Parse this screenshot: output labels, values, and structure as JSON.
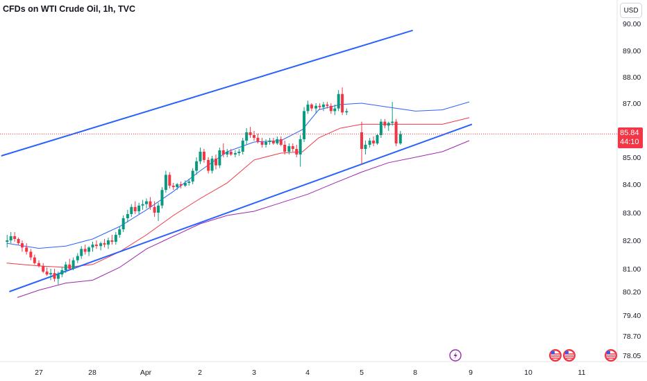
{
  "header": {
    "title": "CFDs on WTI Crude Oil, 1h, TVC"
  },
  "currency_button": {
    "label": "USD"
  },
  "price_tag": {
    "price": "85.84",
    "countdown": "44:10"
  },
  "colors": {
    "up": "#089981",
    "down": "#f23645",
    "channel": "#2962ff",
    "band_upper": "#2962ff",
    "band_mid": "#f23645",
    "band_lower": "#9c27b0",
    "last_price": "#f23645"
  },
  "chart_data": {
    "type": "candlestick",
    "y_ticks": [
      "90.00",
      "89.00",
      "88.00",
      "87.00",
      "86.00",
      "85.00",
      "84.00",
      "83.00",
      "82.00",
      "81.00",
      "80.20",
      "79.40",
      "78.70",
      "78.05"
    ],
    "x_ticks": [
      "27",
      "28",
      "Apr",
      "2",
      "3",
      "4",
      "5",
      "8",
      "9",
      "10",
      "11"
    ],
    "last_price": 85.84,
    "series": [
      {
        "name": "",
        "kind": "channel-upper",
        "points": [
          [
            -0.7,
            85.05
          ],
          [
            6.95,
            89.75
          ]
        ]
      },
      {
        "name": "",
        "kind": "channel-lower",
        "points": [
          [
            -0.55,
            80.2
          ],
          [
            8.05,
            86.2
          ]
        ]
      },
      {
        "name": "",
        "kind": "upper-band",
        "points": [
          [
            -0.6,
            81.9
          ],
          [
            0.0,
            81.72
          ],
          [
            0.5,
            81.8
          ],
          [
            1.0,
            82.05
          ],
          [
            1.5,
            82.5
          ],
          [
            2.0,
            83.1
          ],
          [
            2.5,
            83.75
          ],
          [
            3.0,
            84.5
          ],
          [
            3.5,
            85.2
          ],
          [
            4.0,
            85.55
          ],
          [
            4.5,
            85.6
          ],
          [
            4.9,
            86.0
          ],
          [
            5.2,
            86.75
          ],
          [
            5.6,
            86.95
          ],
          [
            6.0,
            87.0
          ],
          [
            6.5,
            86.85
          ],
          [
            7.0,
            86.7
          ],
          [
            7.5,
            86.75
          ],
          [
            8.0,
            87.05
          ]
        ]
      },
      {
        "name": "",
        "kind": "middle-band",
        "points": [
          [
            -0.6,
            81.2
          ],
          [
            0.0,
            81.1
          ],
          [
            0.5,
            81.05
          ],
          [
            1.0,
            81.15
          ],
          [
            1.5,
            81.6
          ],
          [
            2.0,
            82.2
          ],
          [
            2.5,
            82.9
          ],
          [
            3.0,
            83.5
          ],
          [
            3.5,
            84.05
          ],
          [
            4.0,
            84.9
          ],
          [
            4.5,
            85.15
          ],
          [
            4.9,
            85.2
          ],
          [
            5.2,
            85.7
          ],
          [
            5.6,
            86.05
          ],
          [
            6.0,
            86.2
          ],
          [
            6.5,
            86.2
          ],
          [
            7.0,
            86.2
          ],
          [
            7.5,
            86.2
          ],
          [
            8.0,
            86.45
          ]
        ]
      },
      {
        "name": "",
        "kind": "lower-band",
        "points": [
          [
            -0.4,
            80.0
          ],
          [
            0.0,
            80.25
          ],
          [
            0.5,
            80.5
          ],
          [
            1.0,
            80.6
          ],
          [
            1.5,
            81.05
          ],
          [
            2.0,
            81.7
          ],
          [
            2.5,
            82.15
          ],
          [
            3.0,
            82.6
          ],
          [
            3.5,
            82.9
          ],
          [
            4.0,
            83.05
          ],
          [
            4.5,
            83.35
          ],
          [
            5.0,
            83.65
          ],
          [
            5.5,
            84.05
          ],
          [
            6.0,
            84.45
          ],
          [
            6.5,
            84.8
          ],
          [
            7.0,
            85.0
          ],
          [
            7.5,
            85.2
          ],
          [
            8.0,
            85.6
          ]
        ]
      }
    ],
    "candles": [
      [
        -0.59,
        81.95,
        82.2,
        81.75,
        82.0
      ],
      [
        -0.52,
        82.0,
        82.3,
        81.9,
        82.15
      ],
      [
        -0.45,
        82.15,
        82.3,
        81.95,
        82.05
      ],
      [
        -0.38,
        82.05,
        82.1,
        81.85,
        81.9
      ],
      [
        -0.31,
        81.9,
        82.0,
        81.6,
        81.75
      ],
      [
        -0.23,
        81.75,
        81.9,
        81.5,
        81.6
      ],
      [
        -0.15,
        81.6,
        81.7,
        81.3,
        81.4
      ],
      [
        -0.08,
        81.4,
        81.5,
        81.15,
        81.2
      ],
      [
        0.0,
        81.2,
        81.3,
        81.05,
        81.1
      ],
      [
        0.08,
        81.1,
        81.2,
        80.85,
        80.9
      ],
      [
        0.15,
        80.9,
        81.05,
        80.75,
        80.8
      ],
      [
        0.22,
        80.8,
        81.0,
        80.6,
        80.85
      ],
      [
        0.29,
        80.85,
        81.0,
        80.55,
        80.65
      ],
      [
        0.36,
        80.65,
        80.9,
        80.45,
        80.8
      ],
      [
        0.43,
        80.8,
        81.05,
        80.7,
        80.95
      ],
      [
        0.5,
        80.95,
        81.25,
        80.85,
        81.15
      ],
      [
        0.57,
        81.15,
        81.35,
        80.95,
        81.0
      ],
      [
        0.64,
        81.0,
        81.4,
        80.95,
        81.3
      ],
      [
        0.72,
        81.3,
        81.55,
        81.2,
        81.45
      ],
      [
        0.79,
        81.45,
        81.8,
        81.35,
        81.7
      ],
      [
        0.86,
        81.7,
        81.85,
        81.5,
        81.6
      ],
      [
        0.93,
        81.6,
        81.8,
        81.45,
        81.75
      ],
      [
        1.0,
        81.75,
        81.95,
        81.6,
        81.85
      ],
      [
        1.07,
        81.85,
        82.0,
        81.7,
        81.8
      ],
      [
        1.15,
        81.8,
        81.95,
        81.65,
        81.9
      ],
      [
        1.22,
        81.9,
        82.05,
        81.75,
        81.85
      ],
      [
        1.29,
        81.85,
        82.1,
        81.7,
        82.0
      ],
      [
        1.36,
        82.0,
        82.2,
        81.85,
        81.95
      ],
      [
        1.43,
        81.95,
        82.3,
        81.85,
        82.2
      ],
      [
        1.5,
        82.2,
        82.5,
        82.1,
        82.4
      ],
      [
        1.57,
        82.4,
        82.9,
        82.3,
        82.8
      ],
      [
        1.65,
        82.8,
        83.1,
        82.65,
        82.95
      ],
      [
        1.72,
        82.95,
        83.3,
        82.85,
        83.2
      ],
      [
        1.79,
        83.2,
        83.4,
        82.95,
        83.05
      ],
      [
        1.86,
        83.05,
        83.35,
        82.95,
        83.25
      ],
      [
        1.93,
        83.25,
        83.45,
        83.1,
        83.3
      ],
      [
        2.0,
        83.3,
        83.5,
        83.15,
        83.4
      ],
      [
        2.07,
        83.4,
        83.55,
        83.1,
        83.2
      ],
      [
        2.15,
        83.2,
        83.4,
        82.85,
        83.0
      ],
      [
        2.22,
        83.0,
        83.35,
        82.7,
        83.25
      ],
      [
        2.29,
        83.25,
        83.9,
        83.15,
        83.8
      ],
      [
        2.36,
        83.8,
        84.5,
        83.7,
        84.35
      ],
      [
        2.43,
        84.35,
        84.45,
        83.85,
        83.95
      ],
      [
        2.5,
        83.95,
        84.05,
        83.8,
        83.9
      ],
      [
        2.57,
        83.9,
        84.05,
        83.8,
        84.0
      ],
      [
        2.64,
        84.0,
        84.1,
        83.85,
        83.95
      ],
      [
        2.72,
        83.95,
        84.15,
        83.9,
        84.05
      ],
      [
        2.79,
        84.05,
        84.2,
        83.95,
        84.1
      ],
      [
        2.86,
        84.1,
        84.6,
        84.0,
        84.5
      ],
      [
        2.93,
        84.5,
        85.0,
        84.35,
        84.85
      ],
      [
        3.0,
        84.85,
        85.35,
        84.75,
        85.2
      ],
      [
        3.07,
        85.2,
        85.3,
        84.8,
        84.9
      ],
      [
        3.15,
        84.9,
        85.0,
        84.4,
        84.5
      ],
      [
        3.22,
        84.5,
        85.05,
        84.4,
        84.95
      ],
      [
        3.29,
        84.95,
        85.1,
        84.55,
        84.7
      ],
      [
        3.36,
        84.7,
        85.35,
        84.6,
        85.25
      ],
      [
        3.43,
        85.25,
        85.5,
        85.0,
        85.1
      ],
      [
        3.5,
        85.1,
        85.3,
        85.0,
        85.2
      ],
      [
        3.57,
        85.2,
        85.3,
        85.05,
        85.1
      ],
      [
        3.65,
        85.1,
        85.25,
        85.0,
        85.15
      ],
      [
        3.72,
        85.15,
        85.3,
        85.05,
        85.2
      ],
      [
        3.79,
        85.2,
        85.7,
        85.1,
        85.6
      ],
      [
        3.86,
        85.6,
        86.05,
        85.45,
        85.9
      ],
      [
        3.93,
        85.9,
        86.1,
        85.7,
        85.8
      ],
      [
        4.0,
        85.8,
        85.95,
        85.6,
        85.7
      ],
      [
        4.07,
        85.7,
        85.85,
        85.5,
        85.55
      ],
      [
        4.15,
        85.55,
        85.7,
        85.35,
        85.45
      ],
      [
        4.22,
        85.45,
        85.65,
        85.35,
        85.55
      ],
      [
        4.29,
        85.55,
        85.7,
        85.45,
        85.6
      ],
      [
        4.36,
        85.6,
        85.7,
        85.45,
        85.5
      ],
      [
        4.43,
        85.5,
        85.75,
        85.45,
        85.65
      ],
      [
        4.5,
        85.65,
        85.75,
        85.4,
        85.45
      ],
      [
        4.57,
        85.45,
        85.6,
        85.1,
        85.2
      ],
      [
        4.65,
        85.2,
        85.5,
        85.1,
        85.4
      ],
      [
        4.72,
        85.4,
        85.5,
        85.2,
        85.3
      ],
      [
        4.79,
        85.3,
        85.45,
        85.0,
        85.1
      ],
      [
        4.86,
        85.1,
        85.8,
        84.65,
        85.65
      ],
      [
        4.93,
        85.65,
        86.85,
        85.55,
        86.7
      ],
      [
        5.0,
        86.7,
        87.1,
        86.6,
        86.95
      ],
      [
        5.07,
        86.95,
        87.0,
        86.7,
        86.8
      ],
      [
        5.15,
        86.8,
        87.0,
        86.6,
        86.9
      ],
      [
        5.22,
        86.9,
        87.0,
        86.75,
        86.85
      ],
      [
        5.29,
        86.85,
        87.05,
        86.7,
        86.95
      ],
      [
        5.36,
        86.95,
        87.05,
        86.8,
        86.9
      ],
      [
        5.43,
        86.9,
        87.0,
        86.6,
        86.7
      ],
      [
        5.5,
        86.7,
        86.95,
        86.55,
        86.8
      ],
      [
        5.57,
        86.8,
        87.5,
        86.7,
        87.35
      ],
      [
        5.64,
        87.35,
        87.6,
        86.55,
        86.65
      ],
      [
        5.72,
        86.65,
        86.8,
        86.55,
        86.7
      ],
      [
        6.0,
        85.9,
        86.3,
        84.75,
        85.3
      ],
      [
        6.07,
        85.3,
        85.6,
        85.1,
        85.45
      ],
      [
        6.15,
        85.45,
        85.7,
        85.35,
        85.6
      ],
      [
        6.22,
        85.6,
        85.75,
        85.4,
        85.5
      ],
      [
        6.29,
        85.5,
        85.85,
        85.45,
        85.8
      ],
      [
        6.36,
        85.8,
        86.4,
        85.7,
        86.3
      ],
      [
        6.43,
        86.3,
        86.4,
        86.05,
        86.15
      ],
      [
        6.5,
        86.15,
        86.3,
        85.95,
        86.25
      ],
      [
        6.57,
        86.25,
        87.05,
        86.15,
        86.3
      ],
      [
        6.64,
        86.3,
        86.4,
        85.4,
        85.5
      ],
      [
        6.72,
        85.5,
        85.95,
        85.45,
        85.84
      ]
    ]
  }
}
